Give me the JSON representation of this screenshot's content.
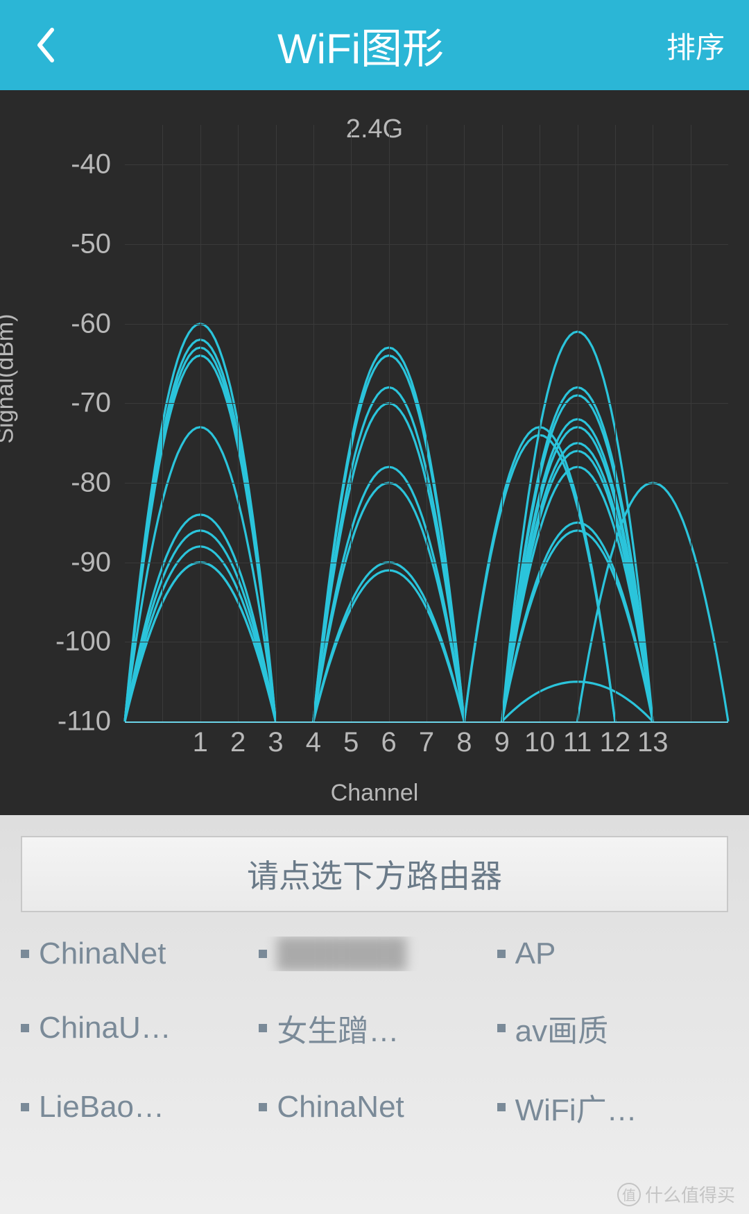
{
  "header": {
    "title": "WiFi图形",
    "sort_label": "排序",
    "bg_color": "#2bb6d6",
    "text_color": "#ffffff"
  },
  "chart": {
    "type": "wifi-channel-parabolas",
    "title": "2.4G",
    "xlabel": "Channel",
    "ylabel": "Signal(dBm)",
    "bg_color": "#2a2a2a",
    "grid_color": "#3a3a3a",
    "text_color": "#b8b8b8",
    "curve_color": "#2bc4db",
    "curve_stroke_width": 3.2,
    "title_fontsize": 38,
    "label_fontsize": 34,
    "tick_fontsize": 40,
    "y": {
      "min": -110,
      "max": -35,
      "ticks": [
        -40,
        -50,
        -60,
        -70,
        -80,
        -90,
        -100,
        -110
      ]
    },
    "x": {
      "min": -1,
      "max": 15,
      "ticks": [
        1,
        2,
        3,
        4,
        5,
        6,
        7,
        8,
        9,
        10,
        11,
        12,
        13
      ]
    },
    "baseline_dbm": -110,
    "channel_halfwidth": 2,
    "networks": [
      {
        "channel": 1,
        "peak_dbm": -60
      },
      {
        "channel": 1,
        "peak_dbm": -62
      },
      {
        "channel": 1,
        "peak_dbm": -63
      },
      {
        "channel": 1,
        "peak_dbm": -64
      },
      {
        "channel": 1,
        "peak_dbm": -73
      },
      {
        "channel": 1,
        "peak_dbm": -84
      },
      {
        "channel": 1,
        "peak_dbm": -86
      },
      {
        "channel": 1,
        "peak_dbm": -88
      },
      {
        "channel": 1,
        "peak_dbm": -90
      },
      {
        "channel": 1,
        "peak_dbm": -90
      },
      {
        "channel": 6,
        "peak_dbm": -63
      },
      {
        "channel": 6,
        "peak_dbm": -64
      },
      {
        "channel": 6,
        "peak_dbm": -68
      },
      {
        "channel": 6,
        "peak_dbm": -70
      },
      {
        "channel": 6,
        "peak_dbm": -78
      },
      {
        "channel": 6,
        "peak_dbm": -80
      },
      {
        "channel": 6,
        "peak_dbm": -90
      },
      {
        "channel": 6,
        "peak_dbm": -91
      },
      {
        "channel": 10,
        "peak_dbm": -73
      },
      {
        "channel": 10,
        "peak_dbm": -74
      },
      {
        "channel": 11,
        "peak_dbm": -61
      },
      {
        "channel": 11,
        "peak_dbm": -68
      },
      {
        "channel": 11,
        "peak_dbm": -69
      },
      {
        "channel": 11,
        "peak_dbm": -72
      },
      {
        "channel": 11,
        "peak_dbm": -73
      },
      {
        "channel": 11,
        "peak_dbm": -75
      },
      {
        "channel": 11,
        "peak_dbm": -76
      },
      {
        "channel": 11,
        "peak_dbm": -78
      },
      {
        "channel": 11,
        "peak_dbm": -85
      },
      {
        "channel": 11,
        "peak_dbm": -86
      },
      {
        "channel": 11,
        "peak_dbm": -105
      },
      {
        "channel": 13,
        "peak_dbm": -80
      }
    ]
  },
  "panel": {
    "prompt": "请点选下方路由器",
    "bg_gradient": [
      "#dedede",
      "#eeeeee"
    ],
    "prompt_border": "#c8c8c8",
    "prompt_text_color": "#6a7a88",
    "prompt_fontsize": 46,
    "item_color": "#7a8a98",
    "item_fontsize": 44,
    "bullet_color": "#7a8a98",
    "routers": [
      {
        "label": "ChinaNet",
        "blurred": false
      },
      {
        "label": "██████",
        "blurred": true
      },
      {
        "label": "AP",
        "blurred": false
      },
      {
        "label": "ChinaU…",
        "blurred": false
      },
      {
        "label": "女生蹭…",
        "blurred": false
      },
      {
        "label": "av画质",
        "blurred": false
      },
      {
        "label": "LieBao…",
        "blurred": false
      },
      {
        "label": "ChinaNet",
        "blurred": false
      },
      {
        "label": "WiFi广…",
        "blurred": false
      }
    ]
  },
  "watermark": {
    "symbol": "值",
    "text": "什么值得买"
  }
}
